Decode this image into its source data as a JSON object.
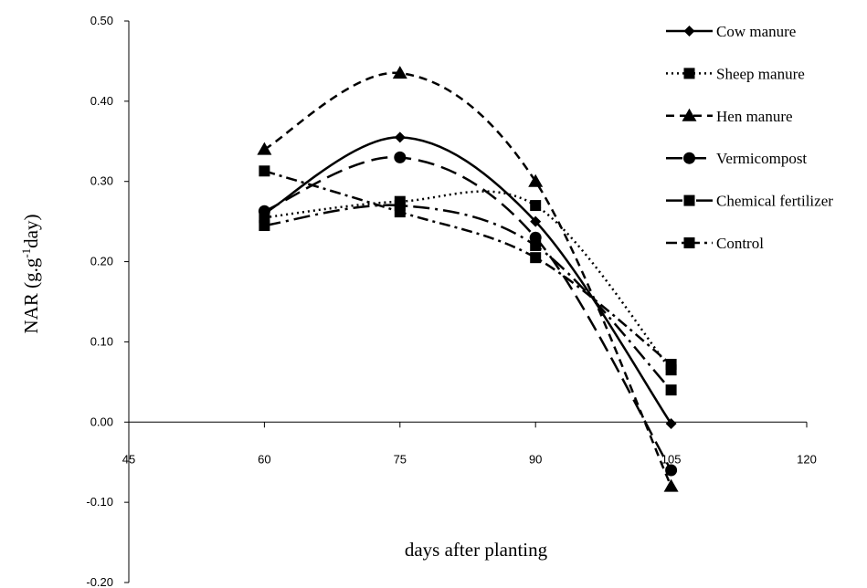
{
  "chart_data": {
    "type": "line",
    "xlabel": "days after planting",
    "ylabel_main": "NAR (g.g",
    "ylabel_sup": "-1",
    "ylabel_end": "day)",
    "xlim": [
      45,
      120
    ],
    "ylim": [
      -0.2,
      0.5
    ],
    "xticks": [
      45,
      60,
      75,
      90,
      105,
      120
    ],
    "xtick_labels": [
      "45",
      "60",
      "75",
      "90",
      "105",
      "120"
    ],
    "yticks": [
      -0.2,
      -0.1,
      0.0,
      0.1,
      0.2,
      0.3,
      0.4,
      0.5
    ],
    "ytick_labels": [
      "-0.20",
      "-0.10",
      "0.00",
      "0.10",
      "0.20",
      "0.30",
      "0.40",
      "0.50"
    ],
    "x": [
      60,
      75,
      90,
      105
    ],
    "legend_position": "top-right",
    "series": [
      {
        "name": "Cow manure",
        "values": [
          0.26,
          0.355,
          0.25,
          -0.002
        ],
        "marker": "diamond",
        "dash": "solid"
      },
      {
        "name": "Sheep manure",
        "values": [
          0.255,
          0.275,
          0.27,
          0.065
        ],
        "marker": "square",
        "dash": "dotted"
      },
      {
        "name": "Hen manure",
        "values": [
          0.34,
          0.435,
          0.3,
          -0.08
        ],
        "marker": "triangle",
        "dash": "dashed"
      },
      {
        "name": "Vermicompost",
        "values": [
          0.263,
          0.33,
          0.23,
          -0.06
        ],
        "marker": "circle",
        "dash": "longdash"
      },
      {
        "name": "Chemical fertilizer",
        "values": [
          0.245,
          0.27,
          0.22,
          0.04
        ],
        "marker": "square",
        "dash": "dashdot-long"
      },
      {
        "name": "Control",
        "values": [
          0.313,
          0.262,
          0.205,
          0.072
        ],
        "marker": "square",
        "dash": "dashdot"
      }
    ]
  }
}
